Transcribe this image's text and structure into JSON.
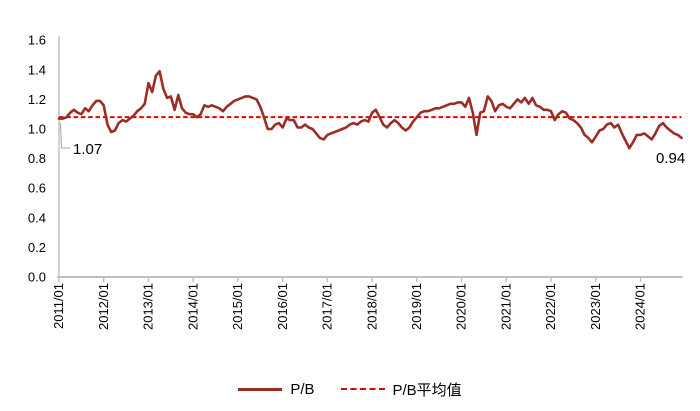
{
  "page": {
    "background": "#FFFFFF"
  },
  "chart_data": {
    "type": "line",
    "title": "",
    "xlabel": "",
    "ylabel": "",
    "ylim": [
      0.0,
      1.6
    ],
    "yticks": [
      "0.0",
      "0.2",
      "0.4",
      "0.6",
      "0.8",
      "1.0",
      "1.2",
      "1.4",
      "1.6"
    ],
    "x_tick_labels": [
      "2011/01",
      "2012/01",
      "2013/01",
      "2014/01",
      "2015/01",
      "2016/01",
      "2017/01",
      "2018/01",
      "2019/01",
      "2020/01",
      "2021/01",
      "2022/01",
      "2023/01",
      "2024/01"
    ],
    "x_frequency": "monthly",
    "x_range": [
      "2011/01",
      "2024/12"
    ],
    "grid": false,
    "legend_position": "bottom-center",
    "axis_color": "#BFBFBF",
    "series": [
      {
        "name": "P/B",
        "style": "solid",
        "color": "#9B2D26",
        "values": [
          1.07,
          1.07,
          1.08,
          1.11,
          1.13,
          1.11,
          1.1,
          1.14,
          1.12,
          1.16,
          1.19,
          1.19,
          1.16,
          1.03,
          0.98,
          0.99,
          1.04,
          1.06,
          1.05,
          1.07,
          1.09,
          1.12,
          1.14,
          1.17,
          1.31,
          1.25,
          1.36,
          1.39,
          1.27,
          1.21,
          1.22,
          1.13,
          1.23,
          1.14,
          1.11,
          1.1,
          1.1,
          1.08,
          1.1,
          1.16,
          1.15,
          1.16,
          1.15,
          1.14,
          1.12,
          1.15,
          1.17,
          1.19,
          1.2,
          1.21,
          1.22,
          1.22,
          1.21,
          1.2,
          1.15,
          1.08,
          1.0,
          1.0,
          1.03,
          1.04,
          1.01,
          1.07,
          1.06,
          1.06,
          1.01,
          1.01,
          1.03,
          1.01,
          1.0,
          0.97,
          0.94,
          0.93,
          0.96,
          0.97,
          0.98,
          0.99,
          1.0,
          1.01,
          1.03,
          1.04,
          1.03,
          1.05,
          1.06,
          1.05,
          1.11,
          1.13,
          1.08,
          1.03,
          1.01,
          1.04,
          1.06,
          1.04,
          1.01,
          0.99,
          1.01,
          1.05,
          1.08,
          1.11,
          1.12,
          1.12,
          1.13,
          1.14,
          1.14,
          1.15,
          1.16,
          1.17,
          1.17,
          1.18,
          1.18,
          1.15,
          1.21,
          1.11,
          0.96,
          1.11,
          1.12,
          1.22,
          1.19,
          1.12,
          1.16,
          1.17,
          1.15,
          1.14,
          1.17,
          1.2,
          1.18,
          1.21,
          1.17,
          1.21,
          1.16,
          1.15,
          1.13,
          1.13,
          1.12,
          1.06,
          1.1,
          1.12,
          1.11,
          1.07,
          1.06,
          1.04,
          1.01,
          0.96,
          0.94,
          0.91,
          0.95,
          0.99,
          1.0,
          1.03,
          1.04,
          1.01,
          1.03,
          0.97,
          0.92,
          0.87,
          0.91,
          0.96,
          0.96,
          0.97,
          0.95,
          0.93,
          0.97,
          1.02,
          1.04,
          1.01,
          0.99,
          0.97,
          0.96,
          0.94
        ]
      },
      {
        "name": "P/B平均值",
        "style": "dashed",
        "color": "#E00000",
        "value": 1.08
      }
    ],
    "annotations": [
      {
        "text": "1.07",
        "target": "first-point",
        "value": 1.07
      },
      {
        "text": "0.94",
        "target": "last-point",
        "value": 0.94
      }
    ]
  },
  "legend": {
    "pb_label": "P/B",
    "mean_label": "P/B平均值"
  }
}
